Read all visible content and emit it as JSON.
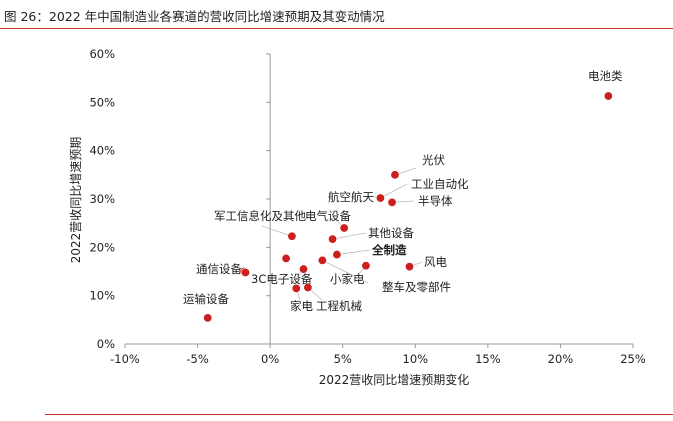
{
  "figure": {
    "title": "图 26：2022 年中国制造业各赛道的营收同比增速预期及其变动情况"
  },
  "chart_data": {
    "type": "scatter",
    "xlabel": "2022营收同比增速预期变化",
    "ylabel": "2022营收同比增速预期",
    "xlim": [
      -10,
      25
    ],
    "ylim": [
      0,
      60
    ],
    "xticks": [
      -10,
      -5,
      0,
      5,
      10,
      15,
      20,
      25
    ],
    "yticks": [
      0,
      10,
      20,
      30,
      40,
      50,
      60
    ],
    "x_tick_labels": [
      "-10%",
      "-5%",
      "0%",
      "5%",
      "10%",
      "15%",
      "20%",
      "25%"
    ],
    "y_tick_labels": [
      "0%",
      "10%",
      "20%",
      "30%",
      "40%",
      "50%",
      "60%"
    ],
    "grid": false,
    "point_color": "#cc1f1f",
    "points": [
      {
        "label": "电池类",
        "x": 23.3,
        "y": 51.3,
        "bold": false
      },
      {
        "label": "光伏",
        "x": 8.6,
        "y": 35.0,
        "bold": false
      },
      {
        "label": "工业自动化",
        "x": 7.6,
        "y": 30.2,
        "bold": false
      },
      {
        "label": "航空航天",
        "x": 7.6,
        "y": 30.2,
        "bold": false
      },
      {
        "label": "半导体",
        "x": 8.4,
        "y": 29.3,
        "bold": false
      },
      {
        "label": "军工信息化及其他",
        "x": 1.5,
        "y": 22.3,
        "bold": false
      },
      {
        "label": "电气设备",
        "x": 5.1,
        "y": 24.0,
        "bold": false
      },
      {
        "label": "其他设备",
        "x": 4.3,
        "y": 21.7,
        "bold": false
      },
      {
        "label": "全制造",
        "x": 4.6,
        "y": 18.5,
        "bold": true
      },
      {
        "label": "风电",
        "x": 9.6,
        "y": 16.0,
        "bold": false
      },
      {
        "label": "通信设备",
        "x": -1.8,
        "y": 15.0,
        "bold": false
      },
      {
        "label": "小家电",
        "x": 6.6,
        "y": 16.2,
        "bold": false
      },
      {
        "label": "3C电子设备",
        "x": 2.3,
        "y": 15.5,
        "bold": false
      },
      {
        "label": "整车及零部件",
        "x": 3.6,
        "y": 17.3,
        "bold": false
      },
      {
        "label": "家电",
        "x": 1.8,
        "y": 11.5,
        "bold": false
      },
      {
        "label": "工程机械",
        "x": 2.6,
        "y": 11.7,
        "bold": false
      },
      {
        "label": "运输设备",
        "x": -4.3,
        "y": 5.4,
        "bold": false
      },
      {
        "x": 1.1,
        "y": 17.7
      },
      {
        "x": -1.7,
        "y": 14.8
      }
    ]
  }
}
